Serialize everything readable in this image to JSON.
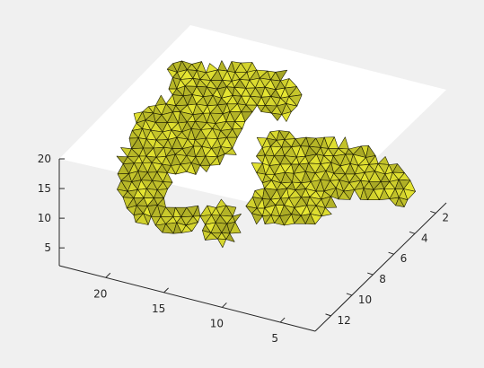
{
  "chart_data": {
    "type": "surface",
    "plot": "triangulated isosurface (3-D mesh)",
    "title": "",
    "xlabel": "",
    "ylabel": "",
    "zlabel": "",
    "face_color": "#e6e632",
    "edge_color": "#1a1a00",
    "background_color": "#f0f0f0",
    "axes_color": "#ffffff",
    "grid": false,
    "axes": {
      "x": {
        "ticks": [
          2,
          4,
          6,
          8,
          10,
          12
        ],
        "range": [
          1,
          13.5
        ]
      },
      "y": {
        "ticks": [
          5,
          10,
          15,
          20
        ],
        "range": [
          2,
          24
        ]
      },
      "z": {
        "ticks": [
          5,
          10,
          15,
          20
        ],
        "range": [
          2,
          20
        ]
      }
    }
  }
}
